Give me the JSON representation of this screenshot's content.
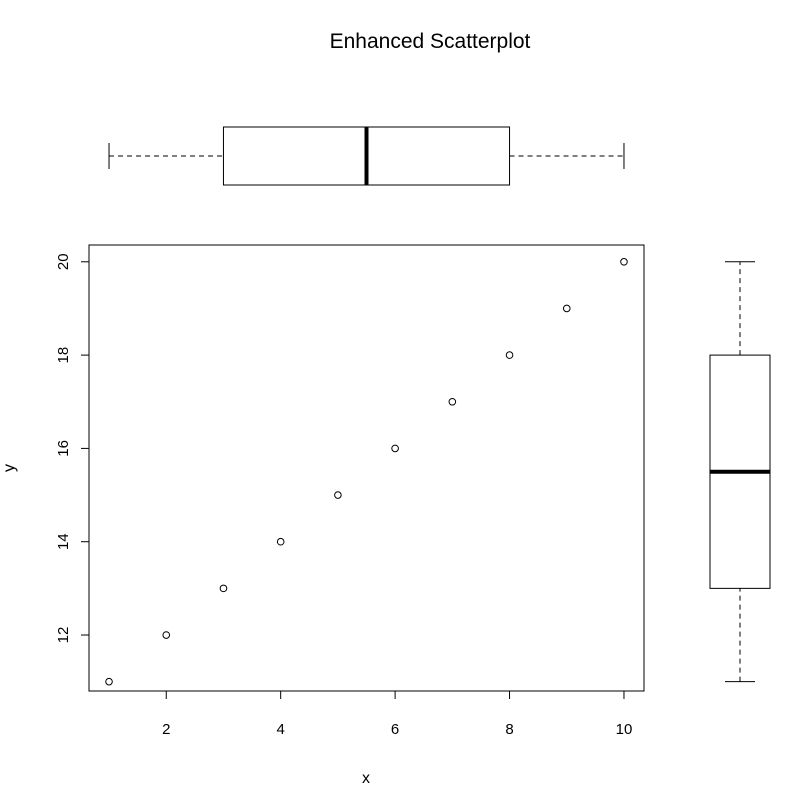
{
  "chart_data": {
    "type": "scatter",
    "title": "Enhanced Scatterplot",
    "xlabel": "x",
    "ylabel": "y",
    "xlim": [
      0.65,
      10.35
    ],
    "ylim": [
      10.8,
      20.36
    ],
    "x_ticks": [
      2,
      4,
      6,
      8,
      10
    ],
    "y_ticks": [
      12,
      14,
      16,
      18,
      20
    ],
    "grid": false,
    "marker": "open-circle",
    "series": [
      {
        "x": [
          1,
          2,
          3,
          4,
          5,
          6,
          7,
          8,
          9,
          10
        ],
        "y": [
          11,
          12,
          13,
          14,
          15,
          16,
          17,
          18,
          19,
          20
        ]
      }
    ],
    "boxplot_x": {
      "min": 1,
      "q1": 3,
      "median": 5.5,
      "q3": 8,
      "max": 10
    },
    "boxplot_y": {
      "min": 11,
      "q1": 13,
      "median": 15.5,
      "q3": 18,
      "max": 20
    }
  },
  "colors": {
    "ink": "#000000",
    "background": "#ffffff"
  }
}
